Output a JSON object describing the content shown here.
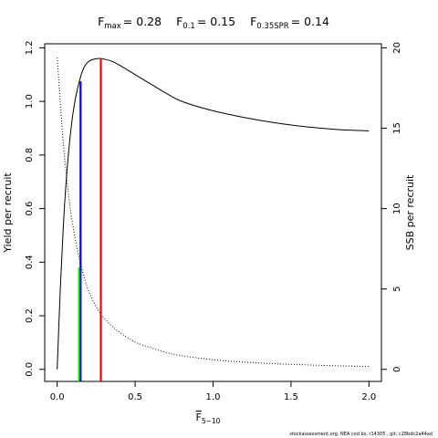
{
  "chart_data": {
    "type": "line",
    "title": {
      "fmax_label": "F",
      "fmax_sub": "max",
      "fmax_value": "= 0.28",
      "f01_label": "F",
      "f01_sub": "0.1",
      "f01_value": "= 0.15",
      "fspr_label": "F",
      "fspr_sub": "0.35SPR",
      "fspr_value": "= 0.14"
    },
    "xlabel": {
      "main": "F",
      "sub": "5−10"
    },
    "ylabel_left": "Yield per recruit",
    "ylabel_right": "SSB per recruit",
    "xlim": [
      -0.08,
      2.08
    ],
    "ylim_left": [
      -0.045,
      1.215
    ],
    "ylim_right": [
      -0.75,
      20.25
    ],
    "x_ticks": [
      0,
      0.5,
      1,
      1.5,
      2
    ],
    "x_tick_labels": [
      "0.0",
      "0.5",
      "1.0",
      "1.5",
      "2.0"
    ],
    "y_left_ticks": [
      0,
      0.2,
      0.4,
      0.6,
      0.8,
      1,
      1.2
    ],
    "y_left_tick_labels": [
      "0.0",
      "0.2",
      "0.4",
      "0.6",
      "0.8",
      "1.0",
      "1.2"
    ],
    "y_right_ticks": [
      0,
      5,
      10,
      15,
      20
    ],
    "y_right_tick_labels": [
      "0",
      "5",
      "10",
      "15",
      "20"
    ],
    "series": [
      {
        "role": "yield",
        "axis": "left",
        "style": "solid",
        "color": "#000000",
        "x": [
          0,
          0.02,
          0.04,
          0.06,
          0.08,
          0.1,
          0.12,
          0.14,
          0.16,
          0.18,
          0.2,
          0.22,
          0.24,
          0.26,
          0.28,
          0.3,
          0.35,
          0.4,
          0.5,
          0.6,
          0.7,
          0.8,
          1.0,
          1.2,
          1.4,
          1.6,
          1.8,
          2.0
        ],
        "y": [
          0,
          0.3,
          0.54,
          0.72,
          0.85,
          0.95,
          1.02,
          1.07,
          1.11,
          1.135,
          1.148,
          1.155,
          1.158,
          1.16,
          1.16,
          1.158,
          1.15,
          1.135,
          1.1,
          1.065,
          1.03,
          1.0,
          0.965,
          0.94,
          0.92,
          0.905,
          0.895,
          0.89
        ]
      },
      {
        "role": "ssb",
        "axis": "right",
        "style": "dotted",
        "color": "#000000",
        "x": [
          0,
          0.02,
          0.04,
          0.06,
          0.08,
          0.1,
          0.12,
          0.14,
          0.16,
          0.18,
          0.2,
          0.25,
          0.3,
          0.35,
          0.4,
          0.5,
          0.6,
          0.7,
          0.8,
          1.0,
          1.2,
          1.4,
          1.6,
          1.8,
          2.0
        ],
        "y": [
          19.4,
          16.6,
          14.0,
          12.0,
          10.3,
          9.0,
          7.9,
          7.0,
          6.2,
          5.5,
          4.9,
          3.9,
          3.2,
          2.7,
          2.3,
          1.7,
          1.35,
          1.05,
          0.85,
          0.6,
          0.45,
          0.35,
          0.28,
          0.22,
          0.18
        ]
      }
    ],
    "reference_lines": [
      {
        "name": "Fmax",
        "x": 0.28,
        "y_top": 1.16,
        "color": "#ff0000"
      },
      {
        "name": "F0.1",
        "x": 0.15,
        "y_top": 1.075,
        "color": "#0000ff"
      },
      {
        "name": "F0.35SPR",
        "x": 0.14,
        "y_top": 0.38,
        "color": "#00ff00"
      }
    ]
  },
  "footer": "stockassessment.org, NEA cod bs, r14305 , git: c28bdc2a44ad"
}
